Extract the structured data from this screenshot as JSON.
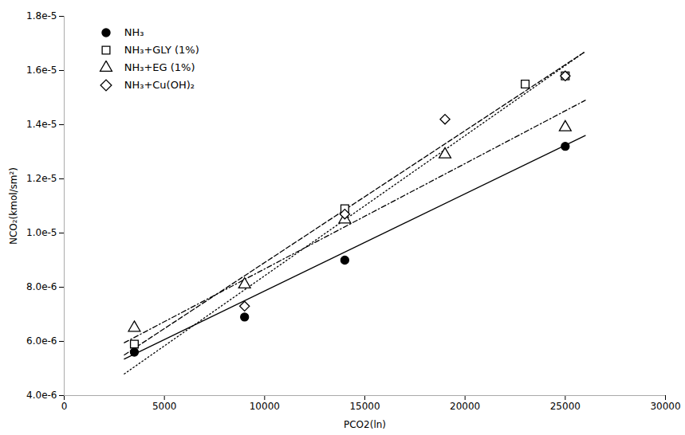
{
  "chart_data": {
    "type": "scatter",
    "x_label": "PCO2(ln)",
    "y_label": "NCO₂(kmol/sm²)",
    "xlim": [
      0,
      30000
    ],
    "ylim": [
      4e-06,
      1.8e-05
    ],
    "xticks": [
      0,
      5000,
      10000,
      15000,
      20000,
      25000,
      30000
    ],
    "yticks": [
      {
        "value": 4e-06,
        "label": "4.0e-6"
      },
      {
        "value": 6e-06,
        "label": "6.0e-6"
      },
      {
        "value": 8e-06,
        "label": "8.0e-6"
      },
      {
        "value": 1e-05,
        "label": "1.0e-5"
      },
      {
        "value": 1.2e-05,
        "label": "1.2e-5"
      },
      {
        "value": 1.4e-05,
        "label": "1.4e-5"
      },
      {
        "value": 1.6e-05,
        "label": "1.6e-5"
      },
      {
        "value": 1.8e-05,
        "label": "1.8e-5"
      }
    ],
    "grid": false,
    "legend": "upper left",
    "series": [
      {
        "type": "line",
        "line_style": "solid",
        "color": "#000000",
        "x": [
          3000,
          26000
        ],
        "values": [
          5.35e-06,
          1.36e-05
        ]
      },
      {
        "type": "line",
        "line_style": "dashed",
        "color": "#000000",
        "x": [
          3000,
          26000
        ],
        "values": [
          5.5e-06,
          1.67e-05
        ]
      },
      {
        "type": "line",
        "line_style": "dashdot",
        "color": "#000000",
        "x": [
          3000,
          26000
        ],
        "values": [
          5.95e-06,
          1.49e-05
        ]
      },
      {
        "type": "line",
        "line_style": "dotted",
        "color": "#000000",
        "x": [
          3000,
          26000
        ],
        "values": [
          4.8e-06,
          1.67e-05
        ]
      },
      {
        "type": "scatter",
        "name": "NH₃",
        "marker": "circle",
        "color": "#000000",
        "x": [
          3500,
          9000,
          14000,
          25000
        ],
        "values": [
          5.6e-06,
          6.9e-06,
          9e-06,
          1.32e-05
        ]
      },
      {
        "type": "scatter",
        "name": "NH₃+GLY (1%)",
        "marker": "open_square",
        "color": "#000000",
        "x": [
          3500,
          14000,
          23000,
          25000
        ],
        "values": [
          5.9e-06,
          1.09e-05,
          1.55e-05,
          1.58e-05
        ]
      },
      {
        "type": "scatter",
        "name": "NH₃+EG (1%)",
        "marker": "open_triangle",
        "color": "#000000",
        "x": [
          3500,
          9000,
          14000,
          19000,
          25000
        ],
        "values": [
          6.5e-06,
          8.1e-06,
          1.05e-05,
          1.29e-05,
          1.39e-05
        ]
      },
      {
        "type": "scatter",
        "name": "NH₃+Cu(OH)₂",
        "marker": "open_diamond",
        "color": "#000000",
        "x": [
          9000,
          14000,
          19000,
          25000
        ],
        "values": [
          7.3e-06,
          1.07e-05,
          1.42e-05,
          1.58e-05
        ]
      }
    ]
  }
}
